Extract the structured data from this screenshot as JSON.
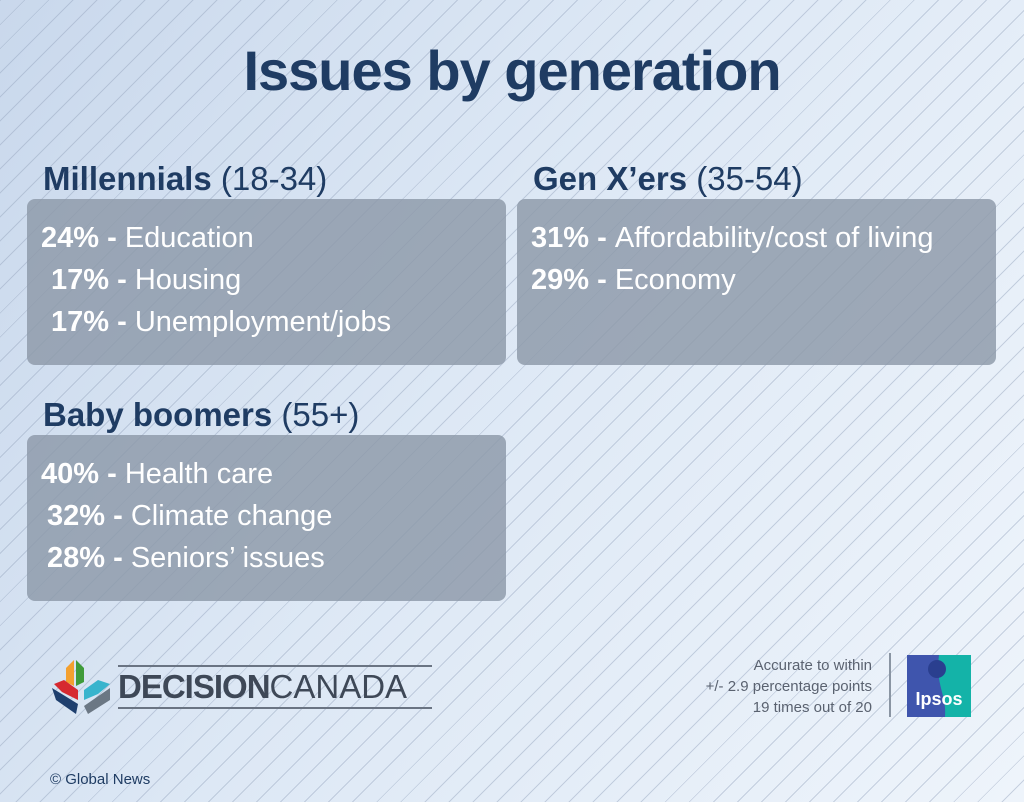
{
  "title": "Issues by generation",
  "groups": [
    {
      "name": "Millennials",
      "range": "(18-34)",
      "items": [
        {
          "pct": "24%",
          "label": "Education"
        },
        {
          "pct": "17%",
          "label": "Housing"
        },
        {
          "pct": "17%",
          "label": "Unemployment/jobs"
        }
      ]
    },
    {
      "name": "Gen X’ers",
      "range": "(35-54)",
      "items": [
        {
          "pct": "31%",
          "label": "Affordability/cost of living"
        },
        {
          "pct": "29%",
          "label": "Economy"
        }
      ]
    },
    {
      "name": "Baby boomers",
      "range": "(55+)",
      "items": [
        {
          "pct": "40%",
          "label": "Health care"
        },
        {
          "pct": "32%",
          "label": "Climate change"
        },
        {
          "pct": "28%",
          "label": "Seniors’ issues"
        }
      ]
    }
  ],
  "separator": " - ",
  "brand": {
    "bold": "DECISION",
    "light": "CANADA"
  },
  "copyright": "© Global News",
  "accuracy": [
    "Accurate to within",
    "+/- 2.9 percentage points",
    "19 times out of 20"
  ],
  "ipsos_logo_text": "Ipsos",
  "colors": {
    "title": "#1f3c63",
    "box": "#8c99a8",
    "ipsos_blue": "#3f55ad",
    "ipsos_teal": "#14b3a8"
  }
}
